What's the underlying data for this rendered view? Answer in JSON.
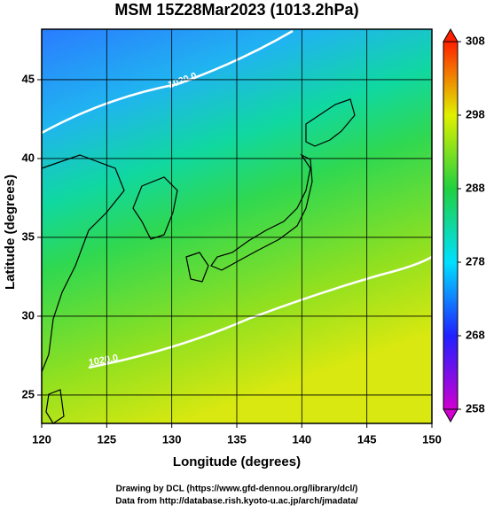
{
  "chart_data": {
    "type": "map",
    "title": "MSM 15Z28Mar2023 (1013.2hPa)",
    "x_label": "Longitude (degrees)",
    "y_label": "Latitude  (degrees)",
    "xlim": [
      120,
      150
    ],
    "xticks": [
      120,
      125,
      130,
      135,
      140,
      145,
      150
    ],
    "ylim": [
      23.2,
      48.2
    ],
    "yticks": [
      25,
      30,
      35,
      40,
      45
    ],
    "grid": true,
    "annotations": [
      "1020.0",
      "1020.0"
    ],
    "colorbar": {
      "lim": [
        258,
        308
      ],
      "ticks": [
        258,
        268,
        278,
        288,
        298,
        308
      ],
      "colors": [
        "#d000d0",
        "#2020ff",
        "#00e0ff",
        "#20d040",
        "#e0f000",
        "#ff2000"
      ]
    },
    "footer": [
      "Drawing by DCL (https://www.gfd-dennou.org/library/dcl/)",
      "Data from http://database.rish.kyoto-u.ac.jp/arch/jmadata/"
    ]
  }
}
